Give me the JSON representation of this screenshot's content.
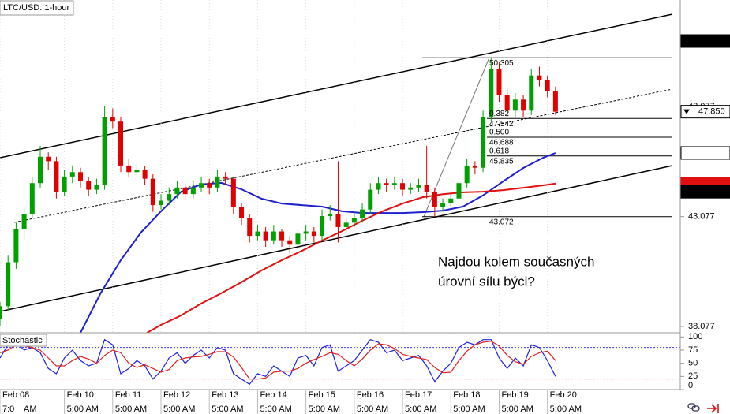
{
  "chart_data": [
    {
      "type": "candlestick",
      "title": "LTC/USD: 1-hour",
      "up_color": "#00a000",
      "down_color": "#e00000",
      "xlim": [
        0,
        338
      ],
      "ylim": [
        37.79,
        52.933
      ],
      "yticks": [
        38.077,
        43.077,
        48.077
      ],
      "xticks": [
        {
          "value": 0,
          "label": "Feb 08",
          "time": "7:0"
        },
        {
          "value": 32,
          "label": "Feb 10",
          "time": "5:00 AM"
        },
        {
          "value": 56,
          "label": "Feb 11",
          "time": "5:00 AM"
        },
        {
          "value": 80,
          "label": "Feb 12",
          "time": "5:00 AM"
        },
        {
          "value": 104,
          "label": "Feb 13",
          "time": "5:00 AM"
        },
        {
          "value": 128,
          "label": "Feb 14",
          "time": "5:00 AM"
        },
        {
          "value": 152,
          "label": "Feb 15",
          "time": "5:00 AM"
        },
        {
          "value": 176,
          "label": "Feb 16",
          "time": "5:00 AM"
        },
        {
          "value": 200,
          "label": "Feb 17",
          "time": "5:00 AM"
        },
        {
          "value": 224,
          "label": "Feb 18",
          "time": "5:00 AM"
        },
        {
          "value": 248,
          "label": "Feb 19",
          "time": "5:00 AM"
        },
        {
          "value": 272,
          "label": "Feb 20",
          "time": "5:00 AM"
        }
      ],
      "clipped_label": "AM",
      "x": [
        0,
        4,
        8,
        12,
        16,
        20,
        24,
        28,
        32,
        36,
        40,
        44,
        48,
        52,
        56,
        60,
        64,
        68,
        72,
        76,
        80,
        84,
        88,
        92,
        96,
        100,
        104,
        108,
        112,
        116,
        120,
        124,
        128,
        132,
        136,
        140,
        144,
        148,
        152,
        156,
        160,
        164,
        168,
        172,
        176,
        180,
        184,
        188,
        192,
        196,
        200,
        204,
        208,
        212,
        216,
        220,
        224,
        228,
        232,
        236,
        240,
        244,
        248,
        252,
        256,
        260,
        264,
        268,
        272,
        276
      ],
      "candles": [
        [
          38.4,
          39.2,
          38.1,
          39.0
        ],
        [
          39.0,
          41.3,
          38.8,
          41.0
        ],
        [
          41.0,
          42.8,
          40.7,
          42.5
        ],
        [
          42.5,
          43.5,
          42.0,
          43.2
        ],
        [
          43.2,
          44.9,
          43.0,
          44.6
        ],
        [
          44.6,
          46.3,
          44.4,
          45.8
        ],
        [
          45.8,
          46.0,
          45.2,
          45.6
        ],
        [
          45.6,
          45.8,
          43.9,
          44.2
        ],
        [
          44.2,
          45.2,
          44.0,
          44.9
        ],
        [
          44.9,
          45.4,
          44.6,
          45.1
        ],
        [
          45.1,
          45.3,
          44.4,
          44.7
        ],
        [
          44.7,
          44.9,
          44.0,
          44.3
        ],
        [
          44.3,
          44.8,
          44.1,
          44.5
        ],
        [
          44.5,
          48.1,
          44.3,
          47.6
        ],
        [
          47.6,
          48.0,
          47.1,
          47.4
        ],
        [
          47.4,
          47.6,
          45.1,
          45.4
        ],
        [
          45.4,
          45.7,
          44.9,
          45.1
        ],
        [
          45.1,
          45.5,
          44.9,
          45.2
        ],
        [
          45.2,
          45.4,
          44.5,
          44.8
        ],
        [
          44.8,
          45.0,
          43.3,
          43.6
        ],
        [
          43.6,
          44.1,
          43.4,
          43.8
        ],
        [
          43.8,
          44.4,
          43.6,
          44.1
        ],
        [
          44.1,
          44.7,
          43.9,
          44.4
        ],
        [
          44.4,
          44.6,
          43.8,
          44.1
        ],
        [
          44.1,
          44.7,
          43.9,
          44.4
        ],
        [
          44.4,
          44.9,
          44.2,
          44.6
        ],
        [
          44.6,
          44.8,
          44.1,
          44.4
        ],
        [
          44.4,
          45.2,
          44.2,
          44.9
        ],
        [
          44.9,
          45.1,
          44.5,
          44.8
        ],
        [
          44.8,
          44.9,
          43.2,
          43.5
        ],
        [
          43.5,
          43.7,
          42.7,
          43.0
        ],
        [
          43.0,
          43.2,
          41.9,
          42.2
        ],
        [
          42.2,
          42.7,
          42.0,
          42.4
        ],
        [
          42.4,
          42.6,
          41.7,
          42.0
        ],
        [
          42.0,
          42.7,
          41.8,
          42.4
        ],
        [
          42.4,
          42.5,
          41.7,
          42.0
        ],
        [
          42.0,
          42.2,
          41.4,
          41.8
        ],
        [
          41.8,
          42.5,
          41.6,
          42.3
        ],
        [
          42.3,
          42.7,
          42.0,
          42.4
        ],
        [
          42.4,
          42.6,
          41.9,
          42.2
        ],
        [
          42.2,
          43.4,
          42.0,
          43.1
        ],
        [
          43.1,
          43.6,
          42.9,
          43.2
        ],
        [
          43.2,
          45.6,
          41.9,
          42.6
        ],
        [
          42.6,
          43.0,
          42.3,
          42.8
        ],
        [
          42.8,
          43.3,
          42.6,
          43.0
        ],
        [
          43.0,
          43.7,
          42.8,
          43.4
        ],
        [
          43.4,
          44.6,
          43.2,
          44.3
        ],
        [
          44.3,
          44.9,
          44.1,
          44.6
        ],
        [
          44.6,
          44.8,
          44.2,
          44.5
        ],
        [
          44.5,
          44.9,
          44.3,
          44.6
        ],
        [
          44.6,
          44.8,
          44.0,
          44.3
        ],
        [
          44.3,
          44.6,
          44.1,
          44.4
        ],
        [
          44.4,
          44.8,
          44.2,
          44.5
        ],
        [
          44.5,
          46.3,
          43.9,
          44.2
        ],
        [
          44.2,
          44.4,
          43.072,
          43.5
        ],
        [
          43.5,
          43.9,
          43.3,
          43.7
        ],
        [
          43.7,
          44.1,
          43.5,
          43.9
        ],
        [
          43.9,
          44.9,
          43.7,
          44.6
        ],
        [
          44.6,
          45.7,
          44.4,
          45.4
        ],
        [
          45.4,
          45.6,
          45.0,
          45.3
        ],
        [
          45.3,
          47.9,
          45.1,
          47.6
        ],
        [
          47.6,
          50.305,
          47.4,
          49.8
        ],
        [
          49.8,
          50.1,
          48.3,
          48.6
        ],
        [
          48.6,
          48.9,
          47.6,
          47.9
        ],
        [
          47.9,
          48.7,
          47.6,
          48.4
        ],
        [
          48.4,
          48.6,
          47.6,
          47.9
        ],
        [
          47.9,
          49.8,
          47.7,
          49.5
        ],
        [
          49.5,
          49.9,
          49.0,
          49.3
        ],
        [
          49.3,
          49.5,
          48.5,
          48.8
        ],
        [
          48.8,
          49.0,
          47.7,
          47.85
        ]
      ],
      "moving_averages": [
        {
          "color": "#1f1fd0",
          "x": [
            40,
            50,
            60,
            70,
            80,
            90,
            100,
            110,
            120,
            130,
            140,
            150,
            160,
            170,
            180,
            190,
            200,
            210,
            220,
            230,
            240,
            250,
            260,
            270,
            276
          ],
          "values": [
            37.79,
            39.59,
            41.09,
            42.35,
            43.32,
            44.21,
            44.54,
            44.61,
            44.32,
            43.89,
            43.67,
            43.6,
            43.53,
            43.32,
            43.24,
            43.24,
            43.24,
            43.28,
            43.35,
            43.53,
            44.04,
            44.68,
            45.29,
            45.76,
            45.973
          ]
        },
        {
          "color": "#e01010",
          "x": [
            73,
            80,
            90,
            100,
            110,
            120,
            130,
            140,
            150,
            160,
            170,
            180,
            190,
            200,
            210,
            220,
            230,
            240,
            250,
            260,
            270,
            276
          ],
          "values": [
            37.79,
            38.15,
            38.58,
            39.12,
            39.59,
            40.09,
            40.63,
            41.09,
            41.52,
            41.99,
            42.42,
            42.89,
            43.32,
            43.67,
            43.96,
            44.1,
            44.18,
            44.21,
            44.28,
            44.39,
            44.5,
            44.579
          ]
        }
      ],
      "fibonacci": {
        "high": 50.305,
        "low": 43.072,
        "levels": [
          {
            "ratio": 0.382,
            "price": 47.542
          },
          {
            "ratio": {
              "value": 0.5,
              "label": "0.500"
            },
            "price": 46.688
          },
          {
            "ratio": 0.618,
            "price": 45.835
          }
        ]
      },
      "price_markers": [
        {
          "value": 51.067,
          "bg": "#000000",
          "fg": "#ffffff"
        },
        {
          "value": 47.85,
          "label": "47.850",
          "bg": "#ffffff",
          "fg": "#000000",
          "arrow": true
        },
        {
          "value": 45.973,
          "bg": "#ffffff",
          "fg": "#1f1fd0"
        },
        {
          "value": 44.579,
          "bg": "#e01010",
          "fg": "#ffffff"
        },
        {
          "value": 44.207,
          "bg": "#000000",
          "fg": "#ffffff"
        }
      ],
      "annotation": [
        "Najdou kolem současných",
        "úrovní sílu býci?"
      ],
      "annotation_color": "#0b1a55"
    },
    {
      "type": "stochastic",
      "title": "Stochastic",
      "ylim": [
        0,
        108
      ],
      "yticks": [
        0,
        25,
        50,
        75,
        100
      ],
      "levels": [
        {
          "value": 80,
          "color": "#3a3aff"
        },
        {
          "value": 20,
          "color": "#ff3030"
        }
      ],
      "series": [
        {
          "color": "#2020e0",
          "values": [
            60,
            85,
            90,
            75,
            80,
            70,
            40,
            30,
            60,
            75,
            55,
            45,
            50,
            95,
            85,
            30,
            40,
            55,
            45,
            20,
            35,
            60,
            70,
            50,
            65,
            75,
            60,
            80,
            75,
            30,
            20,
            10,
            30,
            25,
            45,
            35,
            25,
            60,
            65,
            45,
            80,
            85,
            35,
            45,
            55,
            75,
            95,
            90,
            70,
            75,
            55,
            60,
            65,
            45,
            15,
            35,
            50,
            80,
            90,
            85,
            95,
            95,
            60,
            40,
            60,
            45,
            85,
            80,
            55,
            25
          ]
        },
        {
          "color": "#e02020",
          "values": [
            70,
            75,
            85,
            83,
            80,
            75,
            60,
            45,
            45,
            55,
            63,
            58,
            50,
            65,
            75,
            70,
            50,
            42,
            47,
            40,
            33,
            38,
            55,
            60,
            62,
            63,
            67,
            72,
            72,
            62,
            42,
            20,
            20,
            22,
            33,
            35,
            35,
            40,
            50,
            57,
            63,
            70,
            67,
            55,
            45,
            58,
            75,
            87,
            85,
            78,
            67,
            63,
            60,
            57,
            42,
            32,
            33,
            55,
            73,
            85,
            90,
            92,
            83,
            65,
            53,
            48,
            63,
            70,
            73,
            55
          ]
        }
      ]
    }
  ]
}
